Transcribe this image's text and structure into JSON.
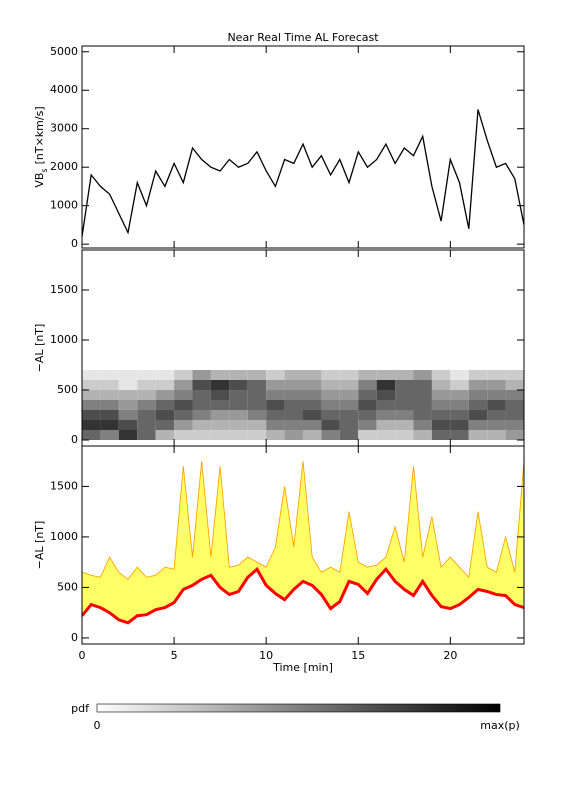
{
  "chart_data": [
    {
      "type": "line",
      "title": "Near Real Time AL Forecast",
      "ylabel": {
        "text": "VB",
        "subscript": "s",
        "units": "[nT×km/s]"
      },
      "x": [
        0,
        0.5,
        1,
        1.5,
        2,
        2.5,
        3,
        3.5,
        4,
        4.5,
        5,
        5.5,
        6,
        6.5,
        7,
        7.5,
        8,
        8.5,
        9,
        9.5,
        10,
        10.5,
        11,
        11.5,
        12,
        12.5,
        13,
        13.5,
        14,
        14.5,
        15,
        15.5,
        16,
        16.5,
        17,
        17.5,
        18,
        18.5,
        19,
        19.5,
        20,
        20.5,
        21,
        21.5,
        22,
        22.5,
        23,
        23.5,
        24
      ],
      "values": [
        200,
        1800,
        1500,
        1300,
        800,
        300,
        1600,
        1000,
        1900,
        1500,
        2100,
        1600,
        2500,
        2200,
        2000,
        1900,
        2200,
        2000,
        2100,
        2400,
        1900,
        1500,
        2200,
        2100,
        2600,
        2000,
        2300,
        1800,
        2200,
        1600,
        2400,
        2000,
        2200,
        2600,
        2100,
        2500,
        2300,
        2800,
        1500,
        600,
        2200,
        1600,
        400,
        3500,
        2700,
        2000,
        2100,
        1700,
        500
      ],
      "color": "#000000",
      "xlim": [
        0,
        24
      ],
      "ylim": [
        -100,
        5150
      ],
      "yticks": [
        0,
        1000,
        2000,
        3000,
        4000,
        5000
      ]
    },
    {
      "type": "heatmap",
      "ylabel": "−AL [nT]",
      "x": [
        0.5,
        1.5,
        2.5,
        3.5,
        4.5,
        5.5,
        6.5,
        7.5,
        8.5,
        9.5,
        10.5,
        11.5,
        12.5,
        13.5,
        14.5,
        15.5,
        16.5,
        17.5,
        18.5,
        19.5,
        20.5,
        21.5,
        22.5,
        23.5
      ],
      "y": [
        50,
        150,
        250,
        350,
        450,
        550,
        650
      ],
      "z": [
        [
          0.6,
          0.5,
          0.8,
          0.6,
          0.3,
          0.2,
          0.2,
          0.2,
          0.2,
          0.2,
          0.3,
          0.4,
          0.3,
          0.5,
          0.6,
          0.2,
          0.2,
          0.2,
          0.3,
          0.6,
          0.6,
          0.3,
          0.3,
          0.4
        ],
        [
          0.8,
          0.8,
          0.7,
          0.6,
          0.6,
          0.4,
          0.3,
          0.3,
          0.3,
          0.3,
          0.5,
          0.5,
          0.5,
          0.7,
          0.6,
          0.5,
          0.3,
          0.3,
          0.5,
          0.7,
          0.7,
          0.5,
          0.5,
          0.5
        ],
        [
          0.7,
          0.7,
          0.5,
          0.6,
          0.7,
          0.6,
          0.5,
          0.4,
          0.4,
          0.5,
          0.6,
          0.6,
          0.7,
          0.6,
          0.6,
          0.6,
          0.5,
          0.5,
          0.6,
          0.6,
          0.6,
          0.7,
          0.6,
          0.6
        ],
        [
          0.5,
          0.5,
          0.4,
          0.5,
          0.6,
          0.7,
          0.6,
          0.6,
          0.6,
          0.6,
          0.7,
          0.6,
          0.6,
          0.5,
          0.5,
          0.7,
          0.6,
          0.6,
          0.6,
          0.5,
          0.5,
          0.6,
          0.7,
          0.6
        ],
        [
          0.3,
          0.3,
          0.3,
          0.3,
          0.4,
          0.5,
          0.6,
          0.7,
          0.6,
          0.6,
          0.5,
          0.5,
          0.5,
          0.4,
          0.4,
          0.6,
          0.7,
          0.6,
          0.6,
          0.4,
          0.4,
          0.5,
          0.5,
          0.5
        ],
        [
          0.2,
          0.2,
          0.1,
          0.2,
          0.2,
          0.4,
          0.7,
          0.8,
          0.7,
          0.6,
          0.4,
          0.4,
          0.4,
          0.3,
          0.3,
          0.5,
          0.8,
          0.6,
          0.6,
          0.3,
          0.2,
          0.4,
          0.4,
          0.3
        ],
        [
          0.1,
          0.1,
          0.1,
          0.1,
          0.1,
          0.2,
          0.4,
          0.3,
          0.3,
          0.3,
          0.2,
          0.3,
          0.3,
          0.2,
          0.2,
          0.3,
          0.3,
          0.3,
          0.4,
          0.2,
          0.1,
          0.2,
          0.2,
          0.2
        ]
      ],
      "colormap": [
        "#ffffff",
        "#000000"
      ],
      "xlim": [
        0,
        24
      ],
      "ylim": [
        -60,
        1900
      ],
      "yticks": [
        0,
        500,
        1000,
        1500
      ]
    },
    {
      "type": "band",
      "ylabel": "−AL [nT]",
      "xlabel": "Time [min]",
      "x": [
        0,
        0.5,
        1,
        1.5,
        2,
        2.5,
        3,
        3.5,
        4,
        4.5,
        5,
        5.5,
        6,
        6.5,
        7,
        7.5,
        8,
        8.5,
        9,
        9.5,
        10,
        10.5,
        11,
        11.5,
        12,
        12.5,
        13,
        13.5,
        14,
        14.5,
        15,
        15.5,
        16,
        16.5,
        17,
        17.5,
        18,
        18.5,
        19,
        19.5,
        20,
        20.5,
        21,
        21.5,
        22,
        22.5,
        23,
        23.5,
        24
      ],
      "lower": {
        "color": "#ff0000",
        "values": [
          220,
          330,
          300,
          250,
          180,
          150,
          220,
          230,
          280,
          300,
          350,
          480,
          520,
          580,
          620,
          500,
          430,
          460,
          600,
          680,
          520,
          440,
          380,
          480,
          560,
          520,
          430,
          290,
          360,
          560,
          530,
          440,
          580,
          680,
          560,
          480,
          420,
          560,
          420,
          310,
          290,
          330,
          400,
          480,
          460,
          430,
          420,
          330,
          300
        ]
      },
      "upper": {
        "color": "#ffa500",
        "values": [
          650,
          620,
          600,
          800,
          650,
          580,
          700,
          600,
          620,
          700,
          680,
          1700,
          800,
          1750,
          800,
          1700,
          700,
          720,
          800,
          750,
          700,
          900,
          1500,
          900,
          1750,
          800,
          650,
          700,
          650,
          1250,
          750,
          700,
          720,
          800,
          1100,
          750,
          1700,
          800,
          1200,
          700,
          800,
          700,
          600,
          1250,
          700,
          650,
          1000,
          650,
          1750
        ]
      },
      "fill_color": "#ffff66",
      "xlim": [
        0,
        24
      ],
      "ylim": [
        -60,
        1900
      ],
      "yticks": [
        0,
        500,
        1000,
        1500
      ],
      "xticks": [
        0,
        5,
        10,
        15,
        20
      ]
    }
  ],
  "colorbar": {
    "label": "pdf",
    "min_label": "0",
    "max_label": "max(p)"
  }
}
